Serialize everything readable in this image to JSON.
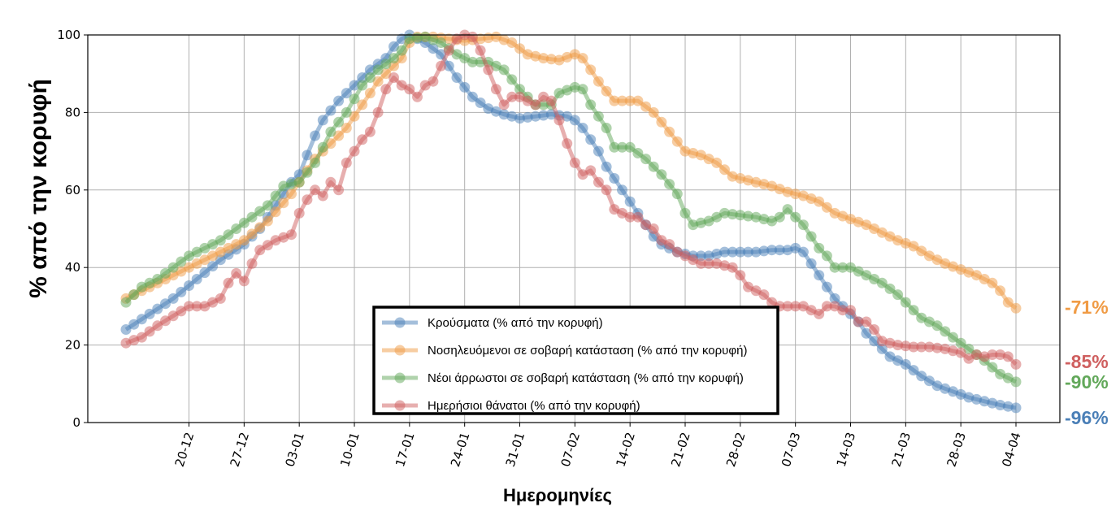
{
  "chart_data": {
    "type": "line",
    "title": "",
    "xlabel": "Ημερομηνίες",
    "ylabel": "% από την κορυφή",
    "ylim": [
      0,
      100
    ],
    "yticks": [
      0,
      20,
      40,
      60,
      80,
      100
    ],
    "x_start_date": "2020-12-12",
    "xtick_labels": [
      "20-12",
      "27-12",
      "03-01",
      "10-01",
      "17-01",
      "24-01",
      "31-01",
      "07-02",
      "14-02",
      "21-02",
      "28-02",
      "07-03",
      "14-03",
      "21-03",
      "28-03",
      "04-04"
    ],
    "xtick_days": [
      8,
      15,
      22,
      29,
      36,
      43,
      50,
      57,
      64,
      71,
      78,
      85,
      92,
      99,
      106,
      113
    ],
    "grid": true,
    "legend_position": "bottom-center",
    "series": [
      {
        "name": "Κρούσματα (% από την κορυφή)",
        "color": "#4a7fb7",
        "end_label": "-96%",
        "anchors": [
          [
            0,
            24
          ],
          [
            3,
            28
          ],
          [
            6,
            32
          ],
          [
            9,
            37
          ],
          [
            12,
            42
          ],
          [
            15,
            46
          ],
          [
            17,
            50
          ],
          [
            19,
            56
          ],
          [
            21,
            62
          ],
          [
            22,
            64
          ],
          [
            23,
            69
          ],
          [
            24,
            74
          ],
          [
            25,
            78
          ],
          [
            27,
            83
          ],
          [
            29,
            87
          ],
          [
            31,
            91
          ],
          [
            33,
            94
          ],
          [
            34,
            97
          ],
          [
            35,
            99
          ],
          [
            36,
            100
          ],
          [
            37,
            99
          ],
          [
            38,
            98
          ],
          [
            40,
            95
          ],
          [
            42,
            89
          ],
          [
            44,
            84
          ],
          [
            46,
            81
          ],
          [
            48,
            79.5
          ],
          [
            50,
            78.5
          ],
          [
            52,
            79
          ],
          [
            54,
            79.5
          ],
          [
            56,
            79
          ],
          [
            57,
            78
          ],
          [
            58,
            76
          ],
          [
            59,
            73
          ],
          [
            60,
            70
          ],
          [
            61,
            66
          ],
          [
            62,
            63
          ],
          [
            63,
            60
          ],
          [
            64,
            57
          ],
          [
            65,
            54
          ],
          [
            66,
            51
          ],
          [
            67,
            48
          ],
          [
            68,
            46
          ],
          [
            70,
            44
          ],
          [
            72,
            43
          ],
          [
            74,
            43
          ],
          [
            76,
            44
          ],
          [
            78,
            44
          ],
          [
            80,
            44
          ],
          [
            82,
            44.5
          ],
          [
            84,
            44.5
          ],
          [
            85,
            45
          ],
          [
            86,
            44
          ],
          [
            87,
            41
          ],
          [
            88,
            38
          ],
          [
            89,
            35
          ],
          [
            90,
            32
          ],
          [
            91,
            30
          ],
          [
            92,
            28
          ],
          [
            93,
            26
          ],
          [
            94,
            23
          ],
          [
            95,
            21
          ],
          [
            96,
            19
          ],
          [
            97,
            17
          ],
          [
            99,
            15
          ],
          [
            101,
            12
          ],
          [
            103,
            9.5
          ],
          [
            105,
            8
          ],
          [
            107,
            6.5
          ],
          [
            109,
            5.5
          ],
          [
            111,
            4.5
          ],
          [
            113,
            3.8
          ]
        ]
      },
      {
        "name": "Νοσηλευόμενοι σε σοβαρή κατάσταση (% από την κορυφή)",
        "color": "#f09b45",
        "end_label": "-71%",
        "anchors": [
          [
            0,
            32
          ],
          [
            3,
            35
          ],
          [
            6,
            38
          ],
          [
            9,
            41
          ],
          [
            12,
            44
          ],
          [
            15,
            47
          ],
          [
            18,
            52
          ],
          [
            21,
            59
          ],
          [
            24,
            68
          ],
          [
            26,
            72
          ],
          [
            28,
            76
          ],
          [
            30,
            82
          ],
          [
            32,
            88
          ],
          [
            34,
            92
          ],
          [
            35,
            94
          ],
          [
            36,
            98
          ],
          [
            37,
            99.5
          ],
          [
            39,
            99.5
          ],
          [
            41,
            99
          ],
          [
            43,
            98.5
          ],
          [
            45,
            99
          ],
          [
            47,
            99.5
          ],
          [
            49,
            98
          ],
          [
            51,
            95
          ],
          [
            53,
            94
          ],
          [
            55,
            93.5
          ],
          [
            57,
            95
          ],
          [
            58,
            94
          ],
          [
            60,
            88
          ],
          [
            62,
            83
          ],
          [
            64,
            83
          ],
          [
            65,
            83
          ],
          [
            67,
            80
          ],
          [
            69,
            75
          ],
          [
            71,
            70
          ],
          [
            73,
            69
          ],
          [
            75,
            67
          ],
          [
            77,
            63.5
          ],
          [
            80,
            62
          ],
          [
            82,
            61
          ],
          [
            84,
            59.5
          ],
          [
            86,
            58.5
          ],
          [
            88,
            57
          ],
          [
            90,
            54
          ],
          [
            92,
            52.5
          ],
          [
            94,
            51
          ],
          [
            96,
            49
          ],
          [
            98,
            47
          ],
          [
            100,
            45.5
          ],
          [
            102,
            43
          ],
          [
            104,
            41
          ],
          [
            106,
            39.5
          ],
          [
            108,
            38
          ],
          [
            110,
            36
          ],
          [
            111,
            34
          ],
          [
            112,
            31
          ],
          [
            113,
            29.5
          ]
        ]
      },
      {
        "name": "Νέοι άρρωστοι σε σοβαρή κατάσταση (% από την κορυφή)",
        "color": "#62a85a",
        "end_label": "-90%",
        "anchors": [
          [
            0,
            31
          ],
          [
            2,
            35
          ],
          [
            4,
            37
          ],
          [
            6,
            40
          ],
          [
            8,
            43
          ],
          [
            10,
            45
          ],
          [
            12,
            47
          ],
          [
            14,
            50
          ],
          [
            16,
            53
          ],
          [
            18,
            56
          ],
          [
            20,
            61
          ],
          [
            22,
            62
          ],
          [
            24,
            67
          ],
          [
            26,
            75
          ],
          [
            28,
            80
          ],
          [
            30,
            87
          ],
          [
            32,
            91
          ],
          [
            34,
            94
          ],
          [
            35,
            96
          ],
          [
            36,
            99
          ],
          [
            38,
            99.5
          ],
          [
            40,
            98
          ],
          [
            42,
            95
          ],
          [
            44,
            93
          ],
          [
            46,
            93
          ],
          [
            48,
            91
          ],
          [
            50,
            86
          ],
          [
            52,
            82
          ],
          [
            54,
            82
          ],
          [
            55,
            85
          ],
          [
            57,
            86.5
          ],
          [
            58,
            86
          ],
          [
            59,
            82
          ],
          [
            61,
            76
          ],
          [
            62,
            71
          ],
          [
            63,
            71
          ],
          [
            64,
            71
          ],
          [
            66,
            68
          ],
          [
            68,
            64
          ],
          [
            70,
            59
          ],
          [
            71,
            54
          ],
          [
            72,
            51
          ],
          [
            74,
            52
          ],
          [
            76,
            54
          ],
          [
            78,
            53.5
          ],
          [
            80,
            53
          ],
          [
            82,
            52
          ],
          [
            83,
            53
          ],
          [
            84,
            55
          ],
          [
            85,
            53
          ],
          [
            86,
            51
          ],
          [
            87,
            48
          ],
          [
            88,
            45
          ],
          [
            89,
            43
          ],
          [
            90,
            40
          ],
          [
            92,
            40
          ],
          [
            94,
            38
          ],
          [
            96,
            36
          ],
          [
            98,
            33
          ],
          [
            99,
            31
          ],
          [
            101,
            27
          ],
          [
            103,
            25
          ],
          [
            105,
            22
          ],
          [
            107,
            19
          ],
          [
            109,
            16
          ],
          [
            111,
            12.5
          ],
          [
            113,
            10.5
          ]
        ]
      },
      {
        "name": "Ημερήσιοι θάνατοι (% από την κορυφή)",
        "color": "#cf5f5f",
        "end_label": "-85%",
        "anchors": [
          [
            0,
            20.5
          ],
          [
            2,
            22
          ],
          [
            4,
            25
          ],
          [
            6,
            27.5
          ],
          [
            8,
            30
          ],
          [
            10,
            30
          ],
          [
            12,
            32
          ],
          [
            13,
            36
          ],
          [
            14,
            38.5
          ],
          [
            15,
            36.5
          ],
          [
            16,
            41
          ],
          [
            17,
            44.5
          ],
          [
            19,
            47
          ],
          [
            21,
            48.5
          ],
          [
            22,
            54
          ],
          [
            23,
            57.5
          ],
          [
            24,
            60
          ],
          [
            25,
            58.5
          ],
          [
            26,
            62
          ],
          [
            27,
            60
          ],
          [
            28,
            67
          ],
          [
            29,
            70
          ],
          [
            30,
            73
          ],
          [
            31,
            75
          ],
          [
            32,
            80
          ],
          [
            33,
            86
          ],
          [
            34,
            89
          ],
          [
            35,
            87
          ],
          [
            36,
            86
          ],
          [
            37,
            84
          ],
          [
            38,
            87
          ],
          [
            39,
            88
          ],
          [
            40,
            92
          ],
          [
            41,
            96
          ],
          [
            42,
            99
          ],
          [
            43,
            100
          ],
          [
            44,
            99.5
          ],
          [
            45,
            96
          ],
          [
            46,
            91
          ],
          [
            47,
            86
          ],
          [
            48,
            82
          ],
          [
            49,
            84
          ],
          [
            50,
            84
          ],
          [
            52,
            82
          ],
          [
            53,
            84
          ],
          [
            54,
            83
          ],
          [
            55,
            78
          ],
          [
            56,
            72
          ],
          [
            57,
            67
          ],
          [
            58,
            64
          ],
          [
            59,
            65
          ],
          [
            60,
            62
          ],
          [
            61,
            60
          ],
          [
            62,
            55
          ],
          [
            63,
            54
          ],
          [
            64,
            53
          ],
          [
            65,
            53
          ],
          [
            66,
            51
          ],
          [
            67,
            50
          ],
          [
            68,
            47
          ],
          [
            69,
            46
          ],
          [
            70,
            44
          ],
          [
            71,
            43
          ],
          [
            72,
            42
          ],
          [
            73,
            41
          ],
          [
            74,
            41
          ],
          [
            75,
            41
          ],
          [
            77,
            40
          ],
          [
            78,
            38
          ],
          [
            79,
            35
          ],
          [
            80,
            34
          ],
          [
            81,
            33
          ],
          [
            82,
            31
          ],
          [
            83,
            30
          ],
          [
            84,
            30
          ],
          [
            85,
            30
          ],
          [
            86,
            30
          ],
          [
            87,
            29
          ],
          [
            88,
            28
          ],
          [
            89,
            30
          ],
          [
            90,
            30
          ],
          [
            91,
            29
          ],
          [
            92,
            29
          ],
          [
            93,
            26
          ],
          [
            94,
            26
          ],
          [
            95,
            24
          ],
          [
            96,
            21
          ],
          [
            98,
            20
          ],
          [
            100,
            19.5
          ],
          [
            102,
            19.5
          ],
          [
            104,
            19
          ],
          [
            106,
            18
          ],
          [
            107,
            16.5
          ],
          [
            108,
            17.5
          ],
          [
            109,
            17
          ],
          [
            110,
            17.5
          ],
          [
            111,
            17.5
          ],
          [
            112,
            17
          ],
          [
            113,
            15
          ]
        ]
      }
    ]
  }
}
